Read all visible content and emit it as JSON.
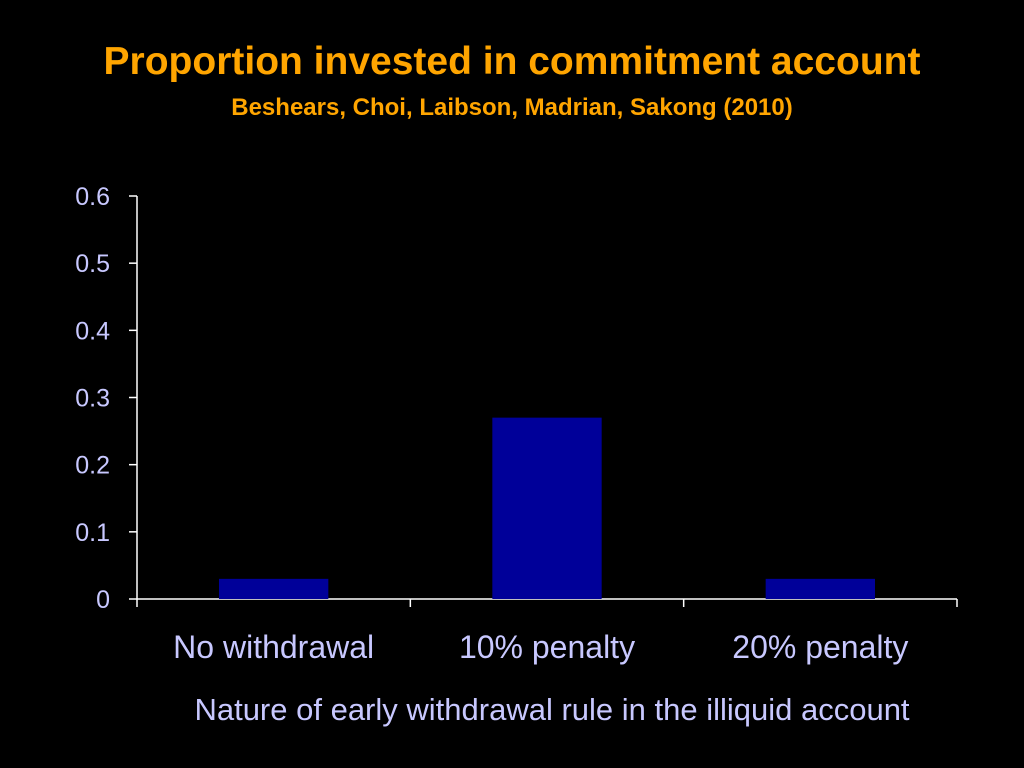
{
  "chart_data": {
    "type": "bar",
    "title": "Proportion invested in commitment account",
    "subtitle": "Beshears, Choi, Laibson, Madrian, Sakong (2010)",
    "xlabel": "Nature of early withdrawal rule in the illiquid account",
    "ylabel": "",
    "categories": [
      "No withdrawal",
      "10% penalty",
      "20% penalty"
    ],
    "values": [
      0.03,
      0.27,
      0.03
    ],
    "ylim": [
      0,
      0.6
    ],
    "yticks": [
      "0",
      "0.1",
      "0.2",
      "0.3",
      "0.4",
      "0.5",
      "0.6"
    ],
    "grid": false,
    "legend": "none",
    "colors": {
      "background": "#000000",
      "title": "#FFA500",
      "bar": "#000099",
      "axis": "#FFFFFF",
      "labels": "#C8C8FF"
    }
  }
}
